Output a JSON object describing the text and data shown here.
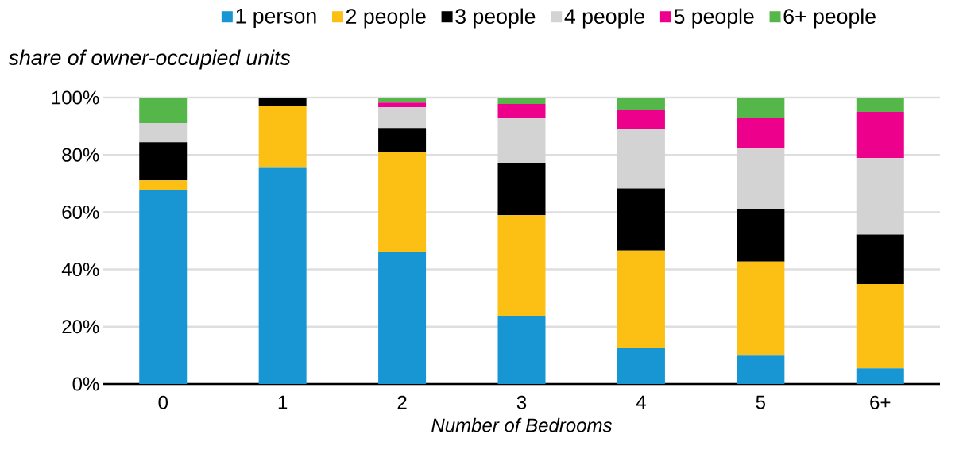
{
  "chart_data": {
    "type": "bar",
    "stacked": true,
    "xlabel": "Number of Bedrooms",
    "ylabel": "share of owner-occupied units",
    "categories": [
      "0",
      "1",
      "2",
      "3",
      "4",
      "5",
      "6+"
    ],
    "series": [
      {
        "name": "1 person",
        "color": "#1796d3",
        "values": [
          67.7,
          75.5,
          46.1,
          23.8,
          12.7,
          9.9,
          5.5
        ]
      },
      {
        "name": "2 people",
        "color": "#fcbf13",
        "values": [
          3.4,
          21.7,
          35.0,
          35.1,
          33.9,
          32.8,
          29.4
        ]
      },
      {
        "name": "3 people",
        "color": "#000000",
        "values": [
          13.3,
          2.8,
          8.3,
          18.3,
          21.7,
          18.4,
          17.3
        ]
      },
      {
        "name": "4 people",
        "color": "#d3d3d3",
        "values": [
          6.7,
          0,
          7.3,
          15.6,
          20.6,
          21.1,
          26.7
        ]
      },
      {
        "name": "5 people",
        "color": "#ec008c",
        "values": [
          0,
          0,
          1.6,
          5.0,
          6.7,
          10.6,
          16.1
        ]
      },
      {
        "name": "6+ people",
        "color": "#55b74a",
        "values": [
          8.9,
          0,
          1.7,
          2.2,
          4.4,
          7.2,
          5.0
        ]
      }
    ],
    "ylim": [
      0,
      100
    ],
    "yticks": [
      {
        "value": 0,
        "label": "0%"
      },
      {
        "value": 20,
        "label": "20%"
      },
      {
        "value": 40,
        "label": "40%"
      },
      {
        "value": 60,
        "label": "60%"
      },
      {
        "value": 80,
        "label": "80%"
      },
      {
        "value": 100,
        "label": "100%"
      }
    ],
    "grid": "y",
    "legend": "top"
  }
}
